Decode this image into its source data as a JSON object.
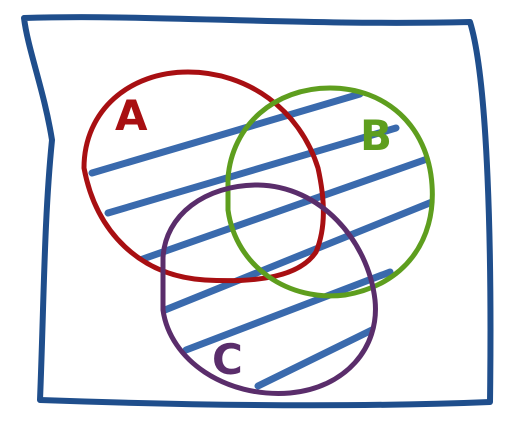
{
  "diagram": {
    "type": "venn",
    "sets": [
      {
        "id": "a",
        "label": "A",
        "color": "#a80f12"
      },
      {
        "id": "b",
        "label": "B",
        "color": "#5e9e1e"
      },
      {
        "id": "c",
        "label": "C",
        "color": "#5a2d6b"
      }
    ],
    "universe_color": "#1f4e8c",
    "shaded_region": "A ∪ B ∪ C",
    "hatch_color": "#3a6aad"
  }
}
